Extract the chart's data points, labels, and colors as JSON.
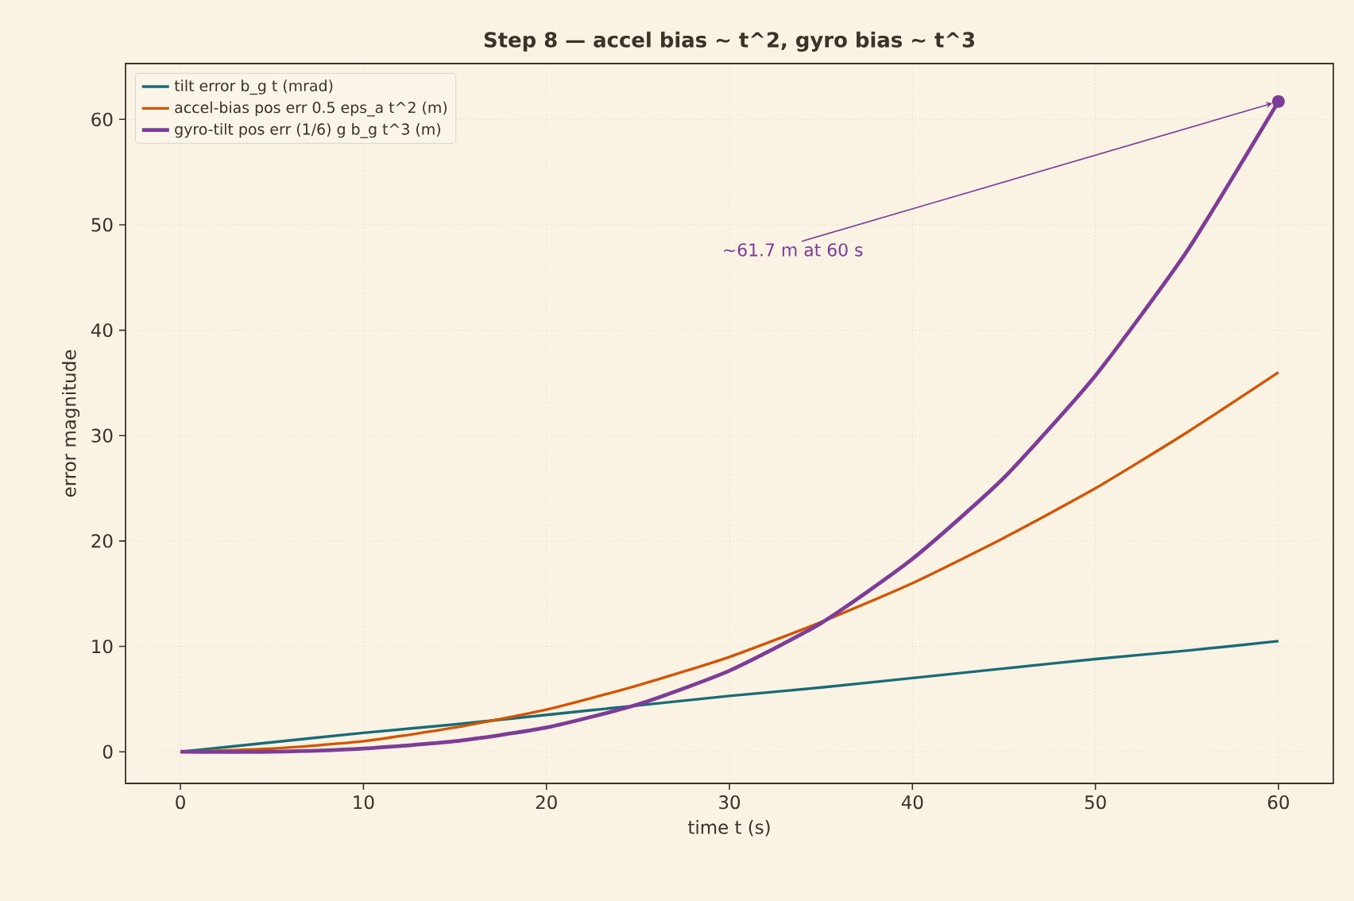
{
  "chart_data": {
    "type": "line",
    "title": "Step 8 — accel bias ~ t^2, gyro bias ~ t^3",
    "xlabel": "time t (s)",
    "ylabel": "error magnitude",
    "x": [
      0,
      5,
      10,
      15,
      20,
      25,
      30,
      35,
      40,
      45,
      50,
      55,
      60
    ],
    "series": [
      {
        "name": "tilt error  b_g t (mrad)",
        "color": "#1a6b78",
        "values": [
          0,
          0.9,
          1.8,
          2.6,
          3.5,
          4.4,
          5.3,
          6.1,
          7,
          7.9,
          8.8,
          9.6,
          10.5
        ]
      },
      {
        "name": "accel-bias pos err  0.5 eps_a t^2 (m)",
        "color": "#d35400",
        "values": [
          0,
          0.3,
          1,
          2.3,
          4,
          6.3,
          9,
          12.3,
          16,
          20.3,
          25,
          30.3,
          36
        ]
      },
      {
        "name": "gyro-tilt pos err  (1/6) g b_g t^3 (m)",
        "color": "#7d3c98",
        "values": [
          0,
          0,
          0.3,
          1,
          2.3,
          4.5,
          7.7,
          12.2,
          18.3,
          26,
          35.7,
          47.5,
          61.7
        ]
      }
    ],
    "annotations": [
      {
        "text": "~61.7 m at 60 s",
        "x": 60,
        "y": 61.7
      }
    ],
    "xlim": [
      -3,
      63
    ],
    "ylim": [
      -3,
      65.3
    ],
    "xticks": [
      0,
      10,
      20,
      30,
      40,
      50,
      60
    ],
    "yticks": [
      0,
      10,
      20,
      30,
      40,
      50,
      60
    ],
    "grid": true,
    "legend": "top left",
    "marker": "none",
    "line_style": "solid"
  }
}
